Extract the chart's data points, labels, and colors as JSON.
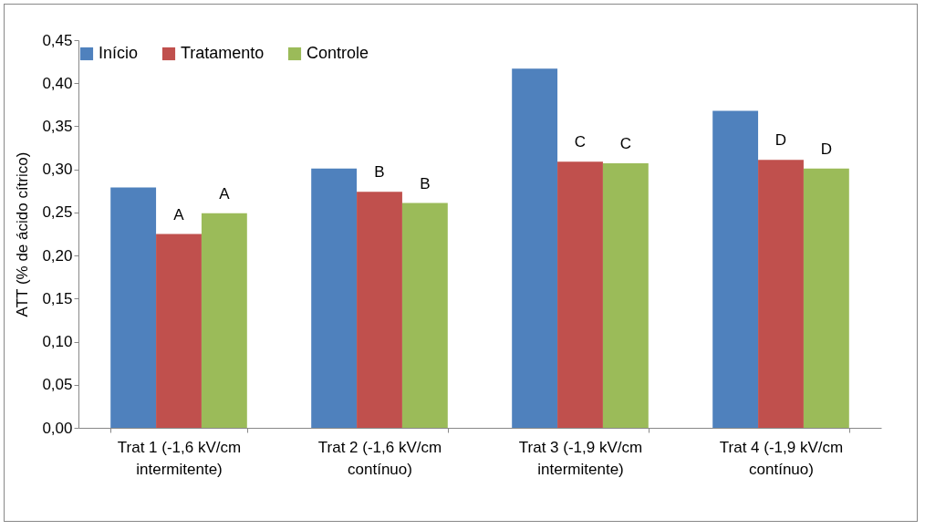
{
  "chart_data": {
    "type": "bar",
    "ylabel": "ATT (% de ácido cítrico)",
    "categories": [
      "Trat 1 (-1,6 kV/cm intermitente)",
      "Trat 2 (-1,6 kV/cm contínuo)",
      "Trat 3 (-1,9 kV/cm intermitente)",
      "Trat 4 (-1,9 kV/cm contínuo)"
    ],
    "series": [
      {
        "name": "Início",
        "color": "#4f81bd",
        "values": [
          0.279,
          0.301,
          0.417,
          0.368
        ]
      },
      {
        "name": "Tratamento",
        "color": "#c0504d",
        "values": [
          0.225,
          0.274,
          0.309,
          0.311
        ],
        "value_labels": [
          "A",
          "B",
          "C",
          "D"
        ]
      },
      {
        "name": "Controle",
        "color": "#9bbb59",
        "values": [
          0.249,
          0.261,
          0.307,
          0.301
        ],
        "value_labels": [
          "A",
          "B",
          "C",
          "D"
        ]
      }
    ],
    "ylim": [
      0,
      0.45
    ],
    "yticks": [
      {
        "value": 0,
        "label": "0,00"
      },
      {
        "value": 0.05,
        "label": "0,05"
      },
      {
        "value": 0.1,
        "label": "0,10"
      },
      {
        "value": 0.15,
        "label": "0,15"
      },
      {
        "value": 0.2,
        "label": "0,20"
      },
      {
        "value": 0.25,
        "label": "0,25"
      },
      {
        "value": 0.3,
        "label": "0,30"
      },
      {
        "value": 0.35,
        "label": "0,35"
      },
      {
        "value": 0.4,
        "label": "0,40"
      },
      {
        "value": 0.45,
        "label": "0,45"
      }
    ],
    "grid": false,
    "legend": "top"
  }
}
